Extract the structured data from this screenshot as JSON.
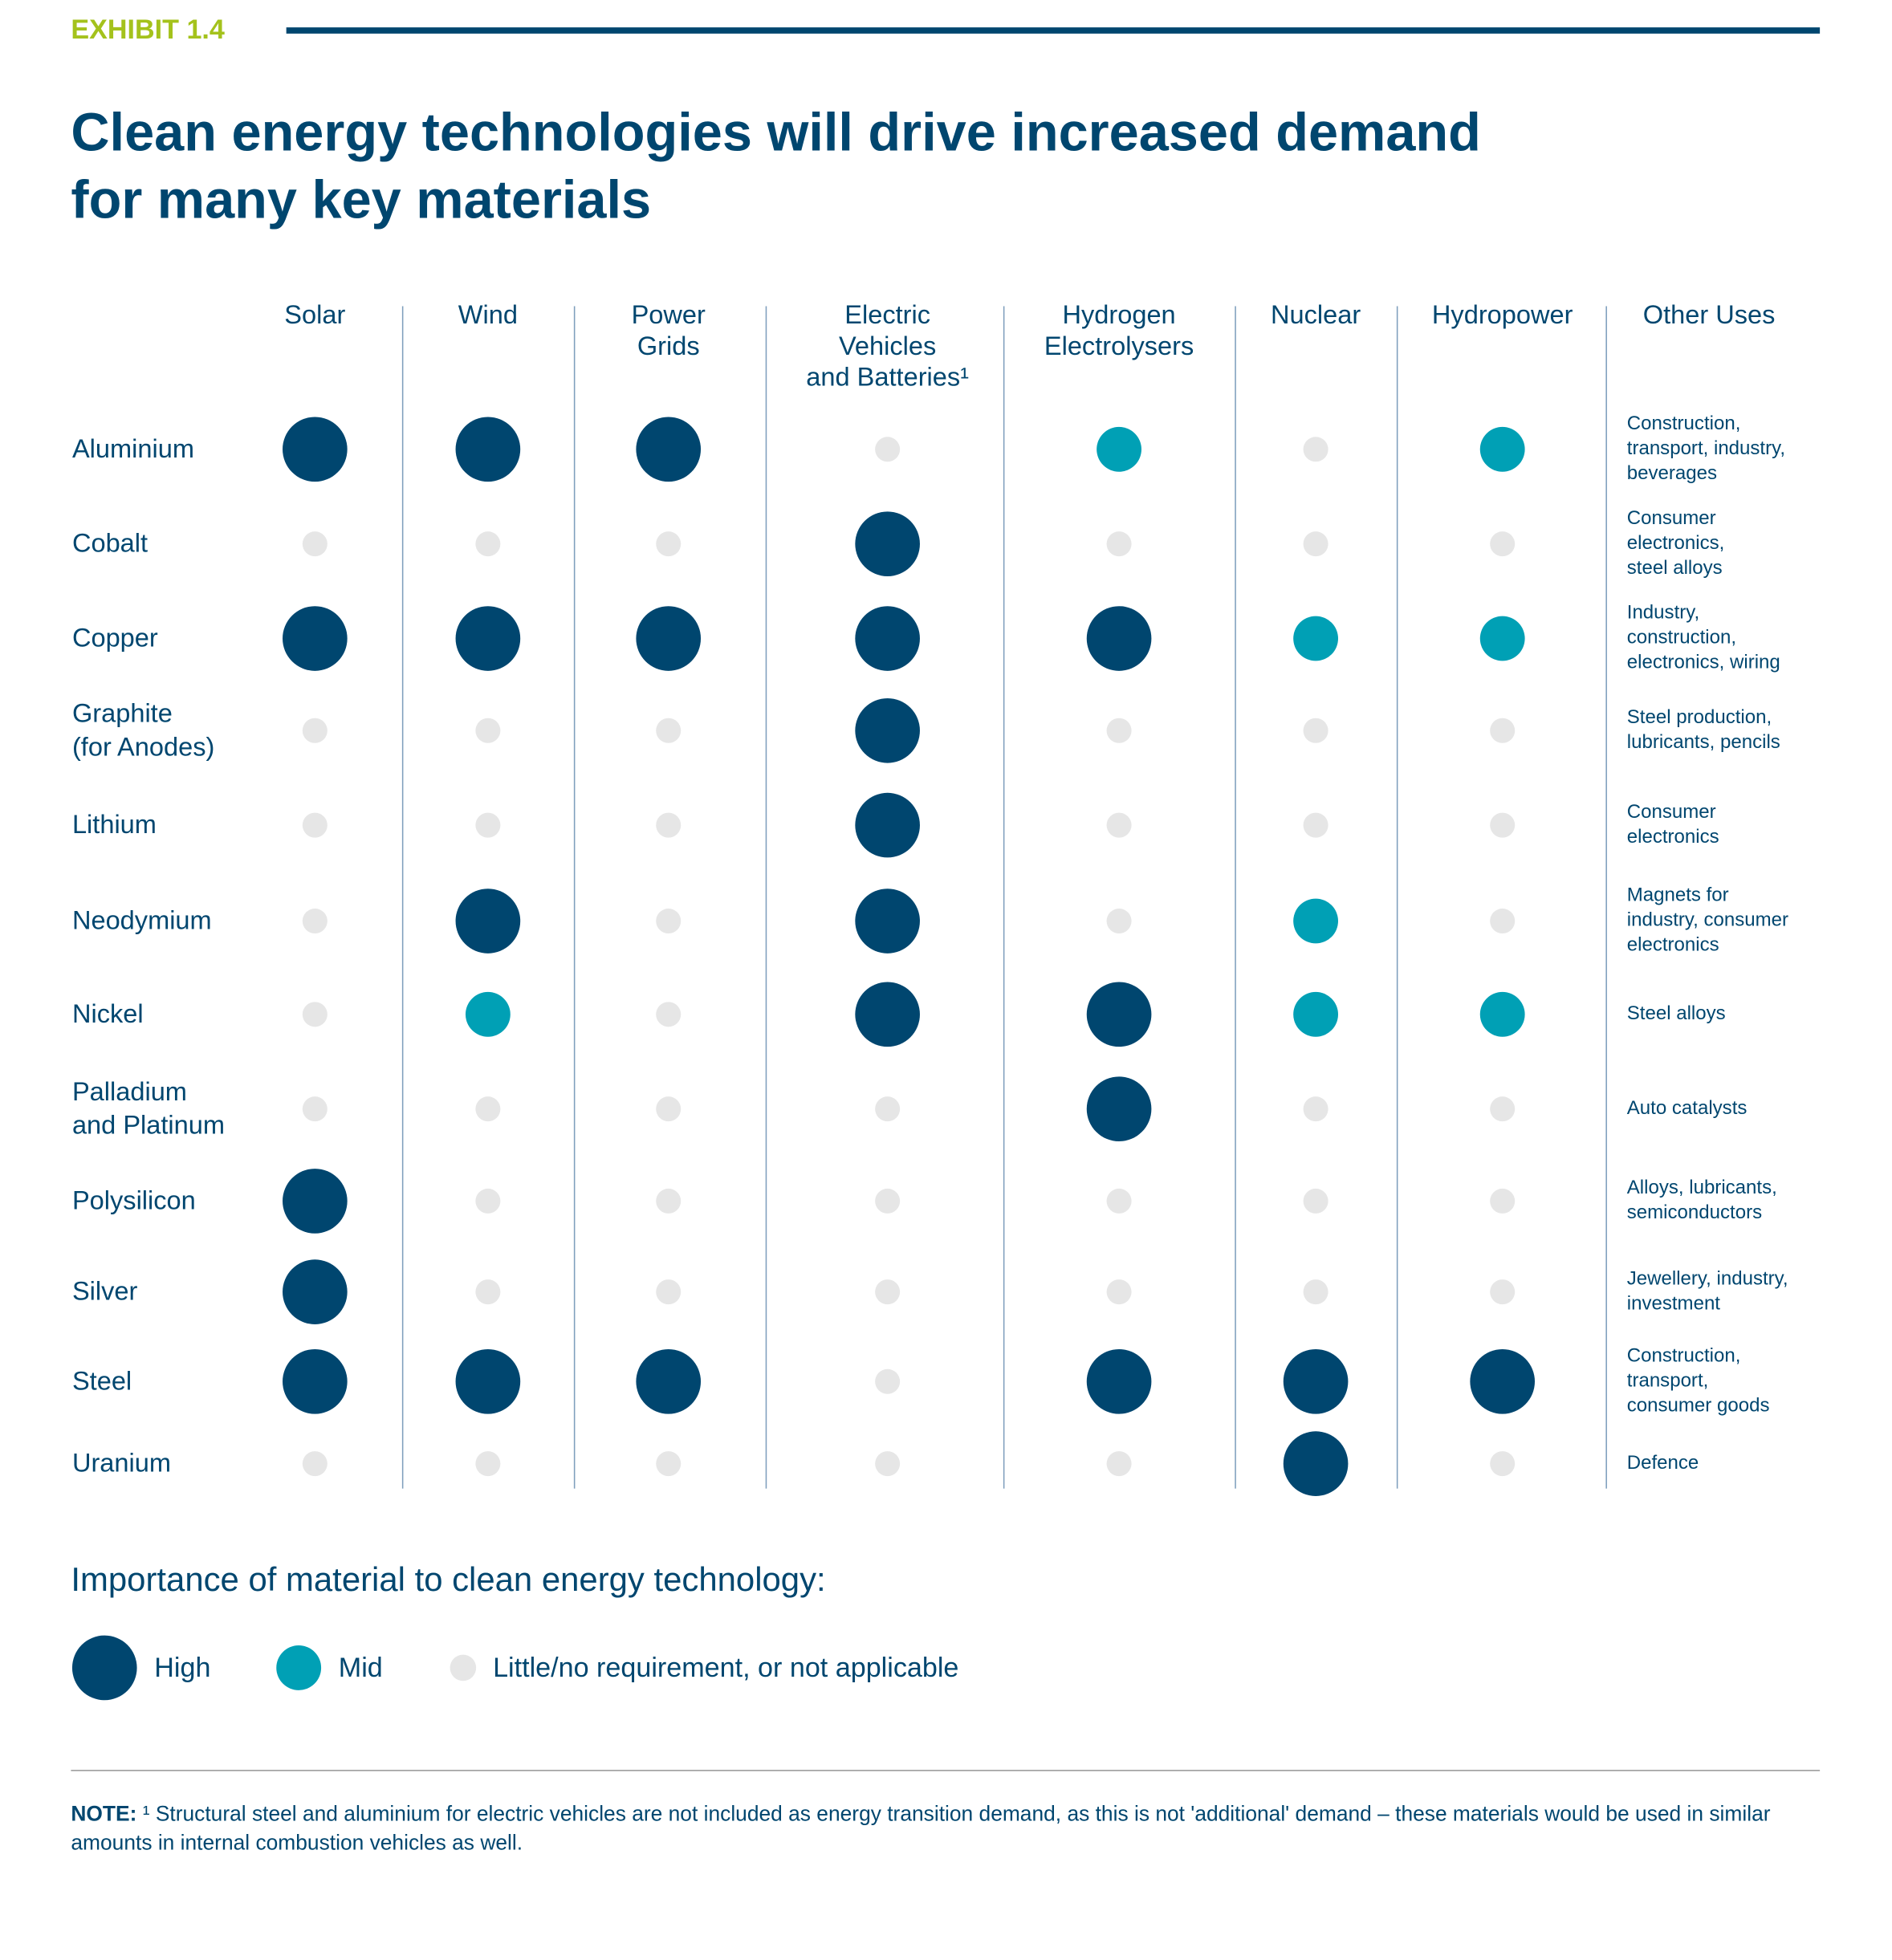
{
  "exhibit_label": "EXHIBIT 1.4",
  "title_line1": "Clean energy technologies will drive increased demand",
  "title_line2": "for many key materials",
  "colors": {
    "high": "#00466f",
    "mid": "#00a0b5",
    "low": "#e6e6e6",
    "accent": "#a4c21c"
  },
  "chart_data": {
    "type": "table",
    "columns": [
      {
        "lines": [
          "Solar"
        ]
      },
      {
        "lines": [
          "Wind"
        ]
      },
      {
        "lines": [
          "Power",
          "Grids"
        ]
      },
      {
        "lines": [
          "Electric",
          "Vehicles",
          "and Batteries¹"
        ]
      },
      {
        "lines": [
          "Hydrogen",
          "Electrolysers"
        ]
      },
      {
        "lines": [
          "Nuclear"
        ]
      },
      {
        "lines": [
          "Hydropower"
        ]
      }
    ],
    "other_uses_header": "Other Uses",
    "rows": [
      {
        "material": [
          "Aluminium"
        ],
        "levels": [
          "High",
          "High",
          "High",
          "Low",
          "Mid",
          "Low",
          "Mid"
        ],
        "other_uses": [
          "Construction,",
          "transport, industry,",
          "beverages"
        ]
      },
      {
        "material": [
          "Cobalt"
        ],
        "levels": [
          "Low",
          "Low",
          "Low",
          "High",
          "Low",
          "Low",
          "Low"
        ],
        "other_uses": [
          "Consumer",
          "electronics,",
          "steel alloys"
        ]
      },
      {
        "material": [
          "Copper"
        ],
        "levels": [
          "High",
          "High",
          "High",
          "High",
          "High",
          "Mid",
          "Mid"
        ],
        "other_uses": [
          "Industry,",
          "construction,",
          "electronics, wiring"
        ]
      },
      {
        "material": [
          "Graphite",
          "(for Anodes)"
        ],
        "levels": [
          "Low",
          "Low",
          "Low",
          "High",
          "Low",
          "Low",
          "Low"
        ],
        "other_uses": [
          "Steel production,",
          "lubricants, pencils"
        ]
      },
      {
        "material": [
          "Lithium"
        ],
        "levels": [
          "Low",
          "Low",
          "Low",
          "High",
          "Low",
          "Low",
          "Low"
        ],
        "other_uses": [
          "Consumer",
          "electronics"
        ]
      },
      {
        "material": [
          "Neodymium"
        ],
        "levels": [
          "Low",
          "High",
          "Low",
          "High",
          "Low",
          "Mid",
          "Low"
        ],
        "other_uses": [
          "Magnets for",
          "industry, consumer",
          "electronics"
        ]
      },
      {
        "material": [
          "Nickel"
        ],
        "levels": [
          "Low",
          "Mid",
          "Low",
          "High",
          "High",
          "Mid",
          "Mid"
        ],
        "other_uses": [
          "Steel alloys"
        ]
      },
      {
        "material": [
          "Palladium",
          "and Platinum"
        ],
        "levels": [
          "Low",
          "Low",
          "Low",
          "Low",
          "High",
          "Low",
          "Low"
        ],
        "other_uses": [
          "Auto catalysts"
        ]
      },
      {
        "material": [
          "Polysilicon"
        ],
        "levels": [
          "High",
          "Low",
          "Low",
          "Low",
          "Low",
          "Low",
          "Low"
        ],
        "other_uses": [
          "Alloys, lubricants,",
          "semiconductors"
        ]
      },
      {
        "material": [
          "Silver"
        ],
        "levels": [
          "High",
          "Low",
          "Low",
          "Low",
          "Low",
          "Low",
          "Low"
        ],
        "other_uses": [
          "Jewellery, industry,",
          "investment"
        ]
      },
      {
        "material": [
          "Steel"
        ],
        "levels": [
          "High",
          "High",
          "High",
          "Low",
          "High",
          "High",
          "High"
        ],
        "other_uses": [
          "Construction,",
          "transport,",
          "consumer goods"
        ]
      },
      {
        "material": [
          "Uranium"
        ],
        "levels": [
          "Low",
          "Low",
          "Low",
          "Low",
          "Low",
          "High",
          "Low"
        ],
        "other_uses": [
          "Defence"
        ]
      }
    ]
  },
  "legend": {
    "title": "Importance of material to clean energy technology:",
    "high": "High",
    "mid": "Mid",
    "low": "Little/no requirement, or not applicable"
  },
  "note": {
    "label": "NOTE:",
    "text": " ¹ Structural steel and aluminium for electric vehicles are not included as energy transition  demand, as this is not 'additional' demand – these materials would be used in similar amounts in  internal combustion vehicles as well."
  }
}
